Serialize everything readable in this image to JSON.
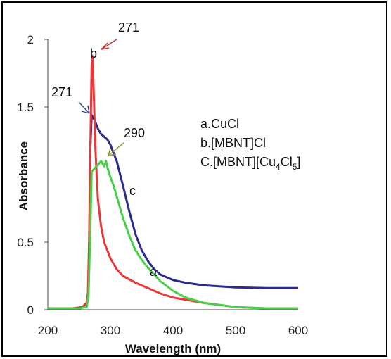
{
  "chart_data": {
    "type": "line",
    "xlabel": "Wavelength (nm)",
    "ylabel": "Absorbance",
    "xlim": [
      200,
      600
    ],
    "ylim": [
      0,
      2
    ],
    "xticks": [
      "200",
      "300",
      "400",
      "500",
      "600"
    ],
    "yticks": [
      "0",
      "0.5",
      "1.5",
      "2"
    ],
    "legend": {
      "placement": "right-center",
      "items": [
        {
          "text_main": "a.CuCl",
          "sub1": "",
          "mid": "",
          "sub2": "",
          "tail": ""
        },
        {
          "text_main": "b.[MBNT]Cl",
          "sub1": "",
          "mid": "",
          "sub2": "",
          "tail": ""
        },
        {
          "text_main": "C.[MBNT][Cu",
          "sub1": "4",
          "mid": "Cl",
          "sub2": "5",
          "tail": "]"
        }
      ]
    },
    "series": [
      {
        "color": "#2c2a8c",
        "x": [
          200,
          240,
          255,
          262,
          265,
          267,
          268,
          270,
          275,
          280,
          285,
          290,
          295,
          300,
          310,
          320,
          330,
          340,
          350,
          360,
          370,
          380,
          400,
          420,
          450,
          500,
          550,
          600
        ],
        "y": [
          0.01,
          0.01,
          0.02,
          0.05,
          0.12,
          0.6,
          1.2,
          1.44,
          1.4,
          1.34,
          1.3,
          1.28,
          1.26,
          1.22,
          1.1,
          0.92,
          0.73,
          0.56,
          0.44,
          0.36,
          0.3,
          0.26,
          0.22,
          0.2,
          0.18,
          0.165,
          0.16,
          0.16
        ]
      },
      {
        "color": "#e8383a",
        "x": [
          200,
          240,
          255,
          262,
          264,
          266,
          268,
          270,
          271,
          272,
          274,
          276,
          278,
          280,
          285,
          290,
          300,
          310,
          320,
          340,
          360,
          380,
          400,
          450,
          500,
          550,
          600
        ],
        "y": [
          0.01,
          0.01,
          0.02,
          0.05,
          0.12,
          0.5,
          1.2,
          1.8,
          1.88,
          1.8,
          1.5,
          1.2,
          1.0,
          0.82,
          0.62,
          0.5,
          0.38,
          0.3,
          0.25,
          0.2,
          0.16,
          0.12,
          0.09,
          0.05,
          0.02,
          0.01,
          0.01
        ]
      },
      {
        "color": "#49d04a",
        "x": [
          200,
          250,
          262,
          265,
          268,
          270,
          275,
          280,
          285,
          290,
          293,
          296,
          300,
          305,
          310,
          320,
          330,
          340,
          350,
          360,
          370,
          380,
          400,
          420,
          450,
          500,
          550,
          600
        ],
        "y": [
          0.01,
          0.01,
          0.02,
          0.1,
          0.6,
          1.02,
          1.05,
          1.07,
          1.1,
          1.06,
          1.1,
          1.04,
          0.98,
          0.92,
          0.84,
          0.68,
          0.55,
          0.44,
          0.37,
          0.31,
          0.26,
          0.21,
          0.14,
          0.09,
          0.05,
          0.02,
          0.01,
          0.01
        ]
      }
    ],
    "annotations": [
      {
        "text": "271",
        "color": "#c23a3a"
      },
      {
        "text": "b",
        "color": "#111111"
      },
      {
        "text": "271",
        "color": "#2b4f8f"
      },
      {
        "text": "290",
        "color": "#8a9a30"
      },
      {
        "text": "c",
        "color": "#111111"
      },
      {
        "text": "a",
        "color": "#111111"
      }
    ]
  }
}
